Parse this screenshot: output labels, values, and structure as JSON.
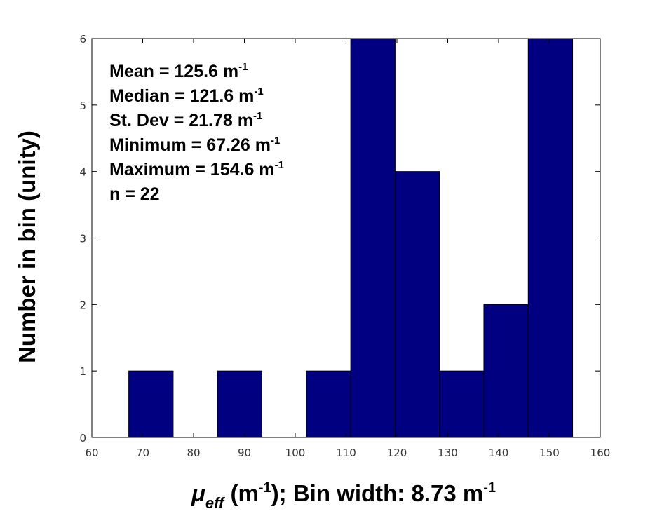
{
  "chart_data": {
    "type": "bar",
    "subtype": "histogram",
    "bin_edges": [
      67.26,
      75.99,
      84.72,
      93.45,
      102.18,
      110.91,
      119.64,
      128.37,
      137.1,
      145.83,
      154.56
    ],
    "values": [
      1,
      0,
      1,
      0,
      1,
      6,
      4,
      1,
      2,
      6
    ],
    "xlim": [
      60,
      160
    ],
    "ylim": [
      0,
      6
    ],
    "xticks": [
      "60",
      "70",
      "80",
      "90",
      "100",
      "110",
      "120",
      "130",
      "140",
      "150",
      "160"
    ],
    "yticks": [
      "0",
      "1",
      "2",
      "3",
      "4",
      "5",
      "6"
    ],
    "ylabel": "Number in bin (unity)",
    "xlabel": {
      "symbol": "μ",
      "subscript": "eff",
      "unit_open": " (m",
      "unit_sup": "-1",
      "rest": "); Bin width: 8.73 m",
      "end_sup": "-1"
    },
    "annotations": [
      {
        "text": "Mean = 125.6 m",
        "sup": "-1"
      },
      {
        "text": "Median = 121.6 m",
        "sup": "-1"
      },
      {
        "text": "St. Dev = 21.78 m",
        "sup": "-1"
      },
      {
        "text": "Minimum = 67.26 m",
        "sup": "-1"
      },
      {
        "text": "Maximum = 154.6 m",
        "sup": "-1"
      },
      {
        "text": "n = 22",
        "sup": ""
      }
    ],
    "bar_color": "#000080",
    "grid": false,
    "legend": "none"
  }
}
